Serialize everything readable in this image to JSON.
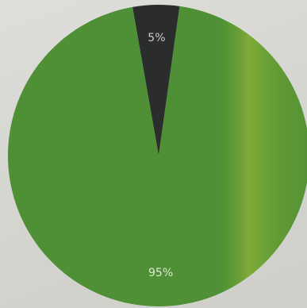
{
  "chart_data": {
    "type": "pie",
    "slices": [
      {
        "label": "5%",
        "value": 5,
        "color": "#2a2d2c",
        "label_color": "#c9cbc5"
      },
      {
        "label": "95%",
        "value": 95,
        "color": "#4f8f35",
        "label_color": "#dfe6d6"
      }
    ],
    "start_angle_deg": -10,
    "legend": "none"
  }
}
